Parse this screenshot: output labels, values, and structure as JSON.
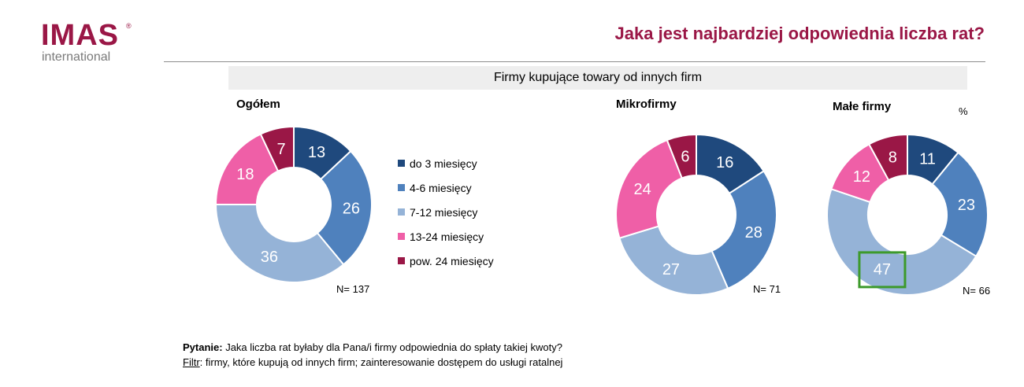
{
  "logo": {
    "text": "IMAS",
    "registered": "®",
    "subtext": "international"
  },
  "title": "Jaka jest najbardziej odpowiednia liczba rat?",
  "subtitle_band": "Firmy kupujące towary od innych firm",
  "unit_label": "%",
  "colors": {
    "brand": "#9a1746",
    "series": [
      "#1f497d",
      "#4f81bd",
      "#95b3d7",
      "#ef5fa7",
      "#9a1746"
    ],
    "highlight_box": "#3d9a2b"
  },
  "legend": [
    {
      "label": "do 3 miesięcy"
    },
    {
      "label": "4-6 miesięcy"
    },
    {
      "label": "7-12 miesięcy"
    },
    {
      "label": "13-24 miesięcy"
    },
    {
      "label": "pow. 24 miesięcy"
    }
  ],
  "chart_data": [
    {
      "type": "pie",
      "title": "Ogółem",
      "labels": [
        "do 3 miesięcy",
        "4-6 miesięcy",
        "7-12 miesięcy",
        "13-24 miesięcy",
        "pow. 24 miesięcy"
      ],
      "values": [
        13,
        26,
        36,
        18,
        7
      ],
      "n_label": "N= 137"
    },
    {
      "type": "pie",
      "title": "Mikrofirmy",
      "labels": [
        "do 3 miesięcy",
        "4-6 miesięcy",
        "7-12 miesięcy",
        "13-24 miesięcy",
        "pow. 24 miesięcy"
      ],
      "values": [
        16,
        28,
        27,
        24,
        6
      ],
      "n_label": "N= 71"
    },
    {
      "type": "pie",
      "title": "Małe firmy",
      "labels": [
        "do 3 miesięcy",
        "4-6 miesięcy",
        "7-12 miesięcy",
        "13-24 miesięcy",
        "pow. 24 miesięcy"
      ],
      "values": [
        11,
        23,
        47,
        12,
        8
      ],
      "n_label": "N= 66",
      "highlighted_value": 47
    }
  ],
  "footer": {
    "question_label": "Pytanie:",
    "question_text": " Jaka liczba rat byłaby dla Pana/i firmy odpowiednia do spłaty takiej kwoty?",
    "filter_label": "Filtr",
    "filter_text": ": firmy, które kupują od innych firm; zainteresowanie dostępem do usługi ratalnej"
  }
}
